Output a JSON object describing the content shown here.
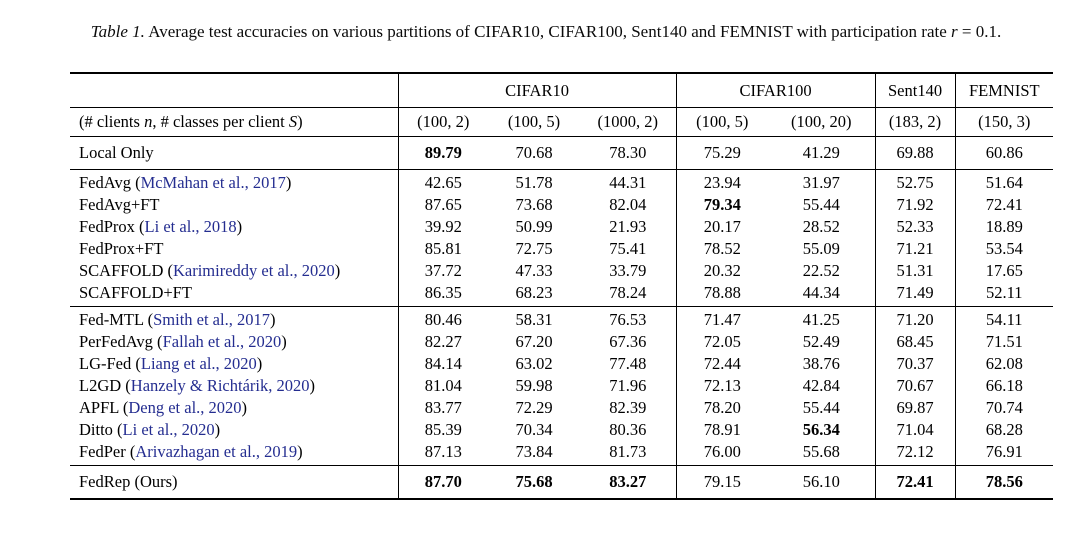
{
  "caption": {
    "label": "Table 1.",
    "text": " Average test accuracies on various partitions of CIFAR10, CIFAR100, Sent140 and FEMNIST with participation rate ",
    "var": "r",
    "value": " = 0.1."
  },
  "colors": {
    "citation_blue": "#242d90",
    "text_black": "#000000"
  },
  "table": {
    "group_headers": [
      "CIFAR10",
      "CIFAR100",
      "Sent140",
      "FEMNIST"
    ],
    "partition_row": {
      "label_parts": [
        "(# clients ",
        "n",
        ", # classes per client ",
        "S",
        ")"
      ],
      "values": [
        "(100, 2)",
        "(100, 5)",
        "(1000, 2)",
        "(100, 5)",
        "(100, 20)",
        "(183, 2)",
        "(150, 3)"
      ]
    },
    "sections": [
      {
        "rows": [
          {
            "label": "Local Only",
            "cite": "",
            "suffix": "",
            "values": [
              "89.79",
              "70.68",
              "78.30",
              "75.29",
              "41.29",
              "69.88",
              "60.86"
            ],
            "bold": [
              true,
              false,
              false,
              false,
              false,
              false,
              false
            ]
          }
        ]
      },
      {
        "rows": [
          {
            "label": "FedAvg (",
            "cite": "McMahan et al., 2017",
            "suffix": ")",
            "values": [
              "42.65",
              "51.78",
              "44.31",
              "23.94",
              "31.97",
              "52.75",
              "51.64"
            ],
            "bold": [
              false,
              false,
              false,
              false,
              false,
              false,
              false
            ]
          },
          {
            "label": "FedAvg+FT",
            "cite": "",
            "suffix": "",
            "values": [
              "87.65",
              "73.68",
              "82.04",
              "79.34",
              "55.44",
              "71.92",
              "72.41"
            ],
            "bold": [
              false,
              false,
              false,
              true,
              false,
              false,
              false
            ]
          },
          {
            "label": "FedProx (",
            "cite": "Li et al., 2018",
            "suffix": ")",
            "values": [
              "39.92",
              "50.99",
              "21.93",
              "20.17",
              "28.52",
              "52.33",
              "18.89"
            ],
            "bold": [
              false,
              false,
              false,
              false,
              false,
              false,
              false
            ]
          },
          {
            "label": "FedProx+FT",
            "cite": "",
            "suffix": "",
            "values": [
              "85.81",
              "72.75",
              "75.41",
              "78.52",
              "55.09",
              "71.21",
              "53.54"
            ],
            "bold": [
              false,
              false,
              false,
              false,
              false,
              false,
              false
            ]
          },
          {
            "label": "SCAFFOLD (",
            "cite": "Karimireddy et al., 2020",
            "suffix": ")",
            "values": [
              "37.72",
              "47.33",
              "33.79",
              "20.32",
              "22.52",
              "51.31",
              "17.65"
            ],
            "bold": [
              false,
              false,
              false,
              false,
              false,
              false,
              false
            ]
          },
          {
            "label": "SCAFFOLD+FT",
            "cite": "",
            "suffix": "",
            "values": [
              "86.35",
              "68.23",
              "78.24",
              "78.88",
              "44.34",
              "71.49",
              "52.11"
            ],
            "bold": [
              false,
              false,
              false,
              false,
              false,
              false,
              false
            ]
          }
        ]
      },
      {
        "rows": [
          {
            "label": "Fed-MTL (",
            "cite": "Smith et al., 2017",
            "suffix": ")",
            "values": [
              "80.46",
              "58.31",
              "76.53",
              "71.47",
              "41.25",
              "71.20",
              "54.11"
            ],
            "bold": [
              false,
              false,
              false,
              false,
              false,
              false,
              false
            ]
          },
          {
            "label": "PerFedAvg (",
            "cite": "Fallah et al., 2020",
            "suffix": ")",
            "values": [
              "82.27",
              "67.20",
              "67.36",
              "72.05",
              "52.49",
              "68.45",
              "71.51"
            ],
            "bold": [
              false,
              false,
              false,
              false,
              false,
              false,
              false
            ]
          },
          {
            "label": "LG-Fed (",
            "cite": "Liang et al., 2020",
            "suffix": ")",
            "values": [
              "84.14",
              "63.02",
              "77.48",
              "72.44",
              "38.76",
              "70.37",
              "62.08"
            ],
            "bold": [
              false,
              false,
              false,
              false,
              false,
              false,
              false
            ]
          },
          {
            "label": "L2GD (",
            "cite": "Hanzely & Richtárik, 2020",
            "suffix": ")",
            "values": [
              "81.04",
              "59.98",
              "71.96",
              "72.13",
              "42.84",
              "70.67",
              "66.18"
            ],
            "bold": [
              false,
              false,
              false,
              false,
              false,
              false,
              false
            ]
          },
          {
            "label": "APFL (",
            "cite": "Deng et al., 2020",
            "suffix": ")",
            "values": [
              "83.77",
              "72.29",
              "82.39",
              "78.20",
              "55.44",
              "69.87",
              "70.74"
            ],
            "bold": [
              false,
              false,
              false,
              false,
              false,
              false,
              false
            ]
          },
          {
            "label": "Ditto (",
            "cite": "Li et al., 2020",
            "suffix": ")",
            "values": [
              "85.39",
              "70.34",
              "80.36",
              "78.91",
              "56.34",
              "71.04",
              "68.28"
            ],
            "bold": [
              false,
              false,
              false,
              false,
              true,
              false,
              false
            ]
          },
          {
            "label": "FedPer (",
            "cite": "Arivazhagan et al., 2019",
            "suffix": ")",
            "values": [
              "87.13",
              "73.84",
              "81.73",
              "76.00",
              "55.68",
              "72.12",
              "76.91"
            ],
            "bold": [
              false,
              false,
              false,
              false,
              false,
              false,
              false
            ]
          }
        ]
      },
      {
        "rows": [
          {
            "label": "FedRep (Ours)",
            "cite": "",
            "suffix": "",
            "values": [
              "87.70",
              "75.68",
              "83.27",
              "79.15",
              "56.10",
              "72.41",
              "78.56"
            ],
            "bold": [
              true,
              true,
              true,
              false,
              false,
              true,
              true
            ]
          }
        ]
      }
    ]
  }
}
